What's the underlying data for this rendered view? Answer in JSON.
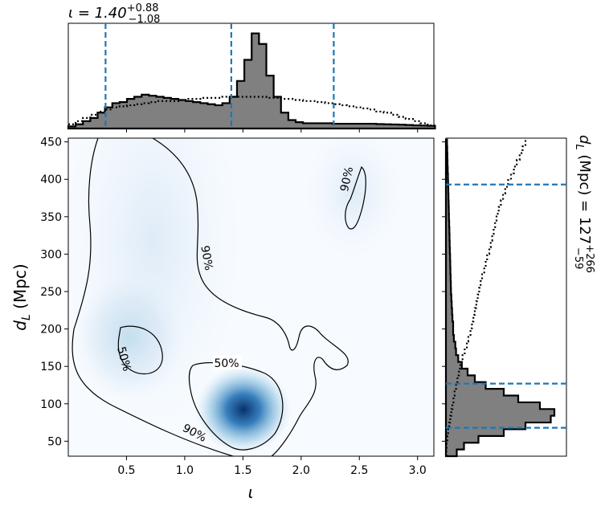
{
  "chart_data": {
    "type": "corner",
    "title": "ι = 1.40",
    "title_sup": "+0.88",
    "title_sub": "−1.08",
    "right_title": "d",
    "right_title_sub": "L",
    "right_title_rest": " (Mpc) = 127",
    "right_title_sup": "+266",
    "right_title_sub2": "−59",
    "xlabel": "ι",
    "ylabel_main": "d",
    "ylabel_sub": "L",
    "ylabel_rest": " (Mpc)",
    "xlim": [
      0.0,
      3.14
    ],
    "ylim": [
      30,
      455
    ],
    "xticks": [
      "0.5",
      "1.0",
      "1.5",
      "2.0",
      "2.5",
      "3.0"
    ],
    "yticks": [
      "50",
      "100",
      "150",
      "200",
      "250",
      "300",
      "350",
      "400",
      "450"
    ],
    "iota_quantiles": [
      0.32,
      1.4,
      2.28
    ],
    "dl_quantiles": [
      68,
      127,
      393
    ],
    "contour_labels": [
      "50%",
      "50%",
      "90%",
      "90%",
      "90%"
    ],
    "iota_hist": {
      "x0": 0.0,
      "dx": 0.063,
      "values": [
        0.2,
        0.4,
        0.7,
        1.0,
        1.5,
        2.0,
        2.4,
        2.5,
        2.8,
        3.0,
        3.2,
        3.1,
        3.0,
        2.9,
        2.8,
        2.7,
        2.6,
        2.5,
        2.4,
        2.3,
        2.2,
        2.4,
        3.0,
        4.5,
        6.5,
        9.0,
        8.0,
        5.0,
        3.0,
        1.5,
        0.8,
        0.6,
        0.5,
        0.5,
        0.5,
        0.5,
        0.45,
        0.45,
        0.45,
        0.45,
        0.45,
        0.45,
        0.42,
        0.4,
        0.38,
        0.36,
        0.33,
        0.3,
        0.28,
        0.25
      ]
    },
    "iota_prior": [
      0.4,
      0.7,
      1.0,
      1.3,
      1.6,
      1.8,
      2.0,
      2.1,
      2.2,
      2.3,
      2.4,
      2.5,
      2.6,
      2.6,
      2.6,
      2.7,
      2.8,
      2.8,
      2.9,
      2.9,
      2.9,
      3.0,
      3.0,
      3.0,
      3.0,
      3.0,
      3.0,
      2.9,
      2.9,
      2.8,
      2.8,
      2.7,
      2.6,
      2.6,
      2.5,
      2.4,
      2.3,
      2.2,
      2.1,
      2.0,
      1.9,
      1.8,
      1.6,
      1.5,
      1.3,
      1.1,
      0.9,
      0.7,
      0.5,
      0.3
    ],
    "dl_hist": {
      "y0": 30,
      "dy": 9,
      "values": [
        1.5,
        2.5,
        4.5,
        8.0,
        11.0,
        14.5,
        15.0,
        13.0,
        10.0,
        8.0,
        5.5,
        4.0,
        3.0,
        2.2,
        1.7,
        1.4,
        1.3,
        1.1,
        1.0,
        1.0,
        0.9,
        0.85,
        0.8,
        0.75,
        0.7,
        0.68,
        0.65,
        0.62,
        0.6,
        0.58,
        0.55,
        0.52,
        0.5,
        0.48,
        0.45,
        0.42,
        0.4,
        0.38,
        0.35,
        0.33,
        0.3,
        0.28,
        0.25,
        0.22,
        0.2,
        0.18,
        0.15
      ]
    },
    "dl_prior": [
      0.05,
      0.1,
      0.2,
      0.3,
      0.45,
      0.6,
      0.75,
      0.9,
      1.05,
      1.2,
      1.4,
      1.6,
      1.8,
      2.0,
      2.3,
      2.6,
      2.9,
      3.1,
      3.4,
      3.6,
      3.8,
      4.0,
      4.2,
      4.4,
      4.6,
      4.8,
      5.0,
      5.3,
      5.5,
      5.7,
      6.0,
      6.2,
      6.4,
      6.6,
      6.8,
      7.0,
      7.3,
      7.6,
      7.9,
      8.2,
      8.6,
      9.0,
      9.4,
      9.8,
      10.2,
      10.6,
      11.0
    ]
  },
  "colors": {
    "quantile_line": "#1f77b4",
    "hist_fill": "#808080",
    "density": "#08306b"
  }
}
